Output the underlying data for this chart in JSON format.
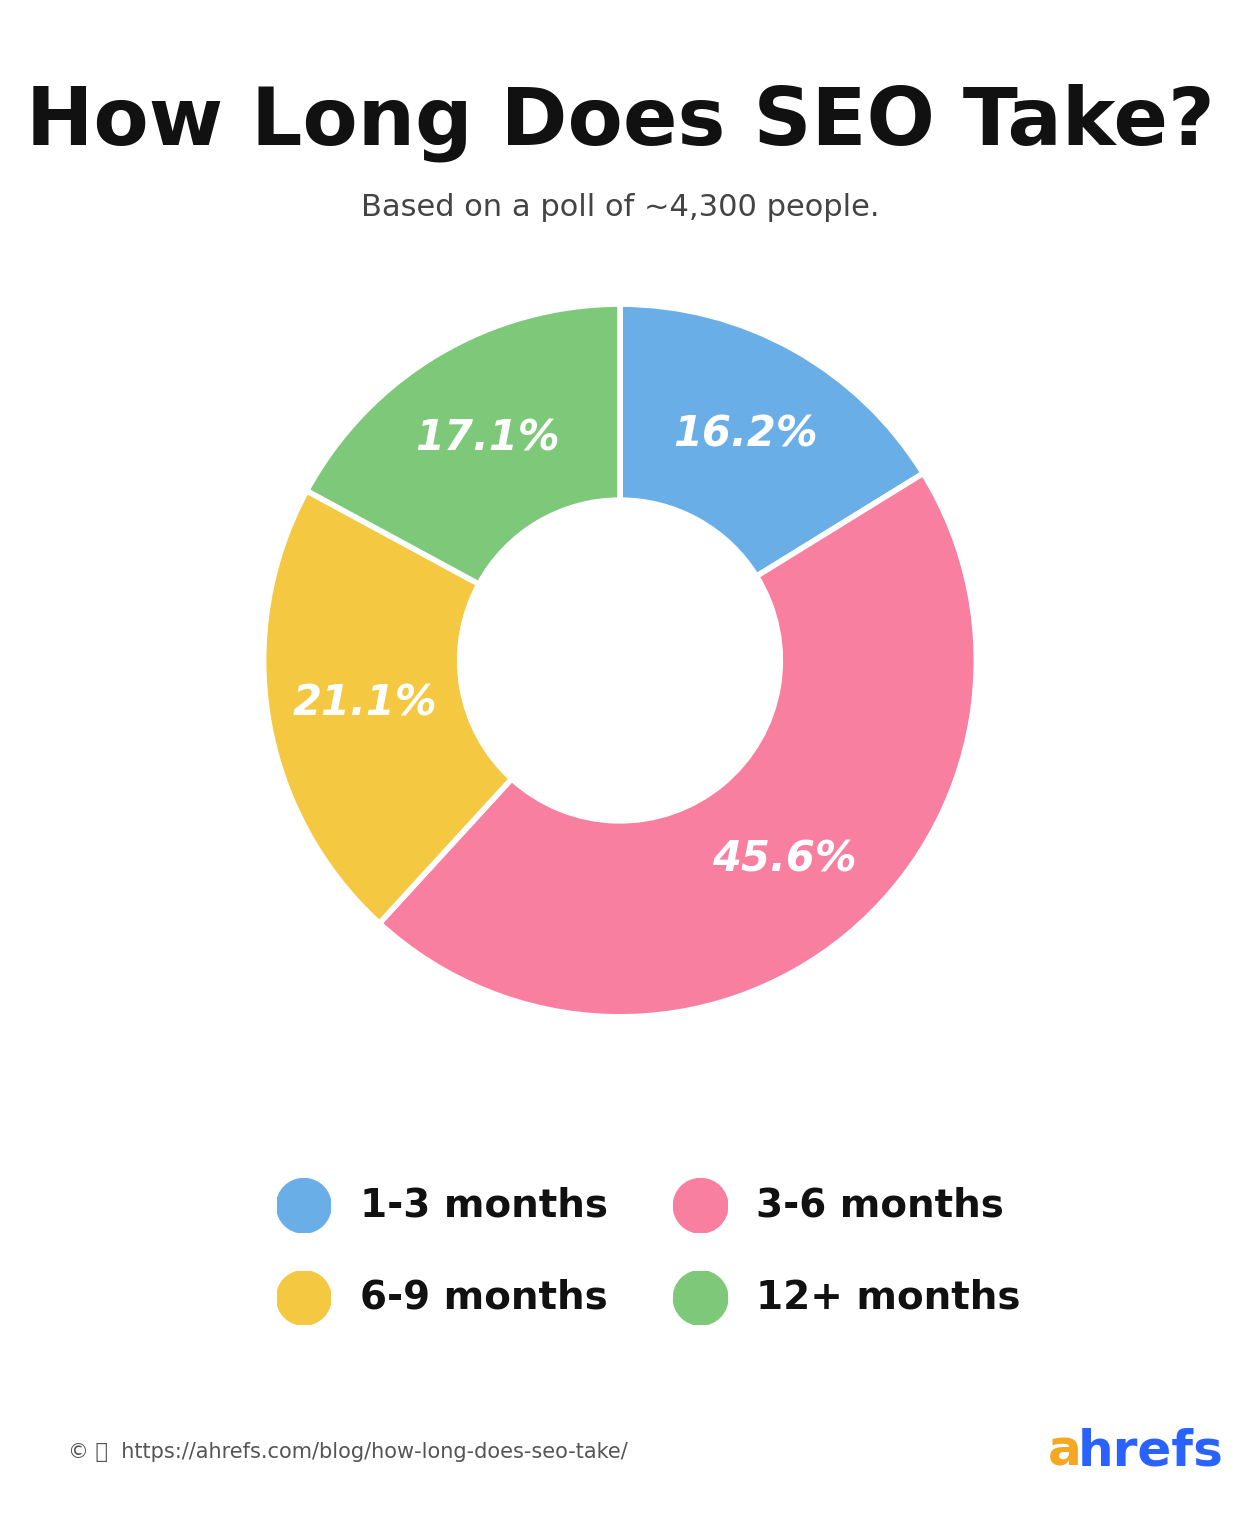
{
  "title": "How Long Does SEO Take?",
  "subtitle": "Based on a poll of ~4,300 people.",
  "slices": [
    16.2,
    45.6,
    21.1,
    17.1
  ],
  "labels": [
    "16.2%",
    "45.6%",
    "21.1%",
    "17.1%"
  ],
  "legend_labels": [
    "1-3 months",
    "3-6 months",
    "6-9 months",
    "12+ months"
  ],
  "colors": [
    "#6aaee8",
    "#f87fa0",
    "#f5c842",
    "#7ec87a"
  ],
  "startangle": 90,
  "title_fontsize": 58,
  "subtitle_fontsize": 22,
  "label_fontsize": 30,
  "legend_fontsize": 28,
  "background_color": "#ffffff",
  "label_color": "#ffffff",
  "footer_url": "https://ahrefs.com/blog/how-long-does-seo-take/",
  "footer_brand_color_a": "#f5a623",
  "footer_brand_color_h": "#2962ff",
  "donut_width": 0.55
}
